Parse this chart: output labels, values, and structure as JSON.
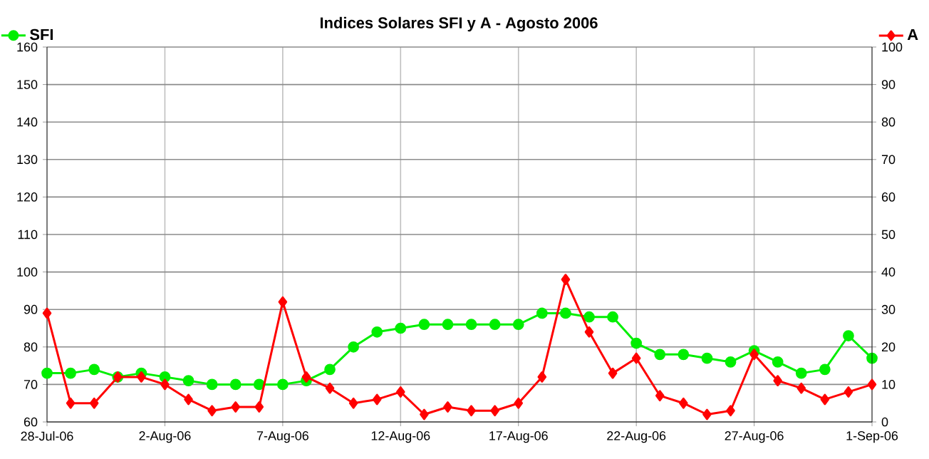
{
  "chart_data": {
    "type": "line",
    "title": "Indices Solares SFI y A - Agosto 2006",
    "x": [
      "2006-07-28",
      "2006-07-29",
      "2006-07-30",
      "2006-07-31",
      "2006-08-01",
      "2006-08-02",
      "2006-08-03",
      "2006-08-04",
      "2006-08-05",
      "2006-08-06",
      "2006-08-07",
      "2006-08-08",
      "2006-08-09",
      "2006-08-10",
      "2006-08-11",
      "2006-08-12",
      "2006-08-13",
      "2006-08-14",
      "2006-08-15",
      "2006-08-16",
      "2006-08-17",
      "2006-08-18",
      "2006-08-19",
      "2006-08-20",
      "2006-08-21",
      "2006-08-22",
      "2006-08-23",
      "2006-08-24",
      "2006-08-25",
      "2006-08-26",
      "2006-08-27",
      "2006-08-28",
      "2006-08-29",
      "2006-08-30",
      "2006-08-31",
      "2006-09-01"
    ],
    "series": [
      {
        "name": "SFI",
        "color": "#00ee00",
        "marker": "circle",
        "values": [
          73,
          73,
          74,
          72,
          73,
          72,
          71,
          70,
          70,
          70,
          70,
          71,
          74,
          80,
          84,
          85,
          86,
          86,
          86,
          86,
          86,
          89,
          89,
          88,
          88,
          81,
          78,
          78,
          77,
          76,
          79,
          76,
          73,
          74,
          83,
          77
        ]
      },
      {
        "name": "A",
        "color": "#ff0000",
        "marker": "diamond",
        "axis": "y2",
        "values": [
          29,
          5,
          5,
          12,
          12,
          10,
          6,
          3,
          4,
          4,
          32,
          12,
          9,
          5,
          6,
          8,
          2,
          4,
          3,
          3,
          5,
          12,
          38,
          24,
          13,
          17,
          7,
          5,
          2,
          3,
          18,
          11,
          9,
          6,
          8,
          10
        ]
      }
    ],
    "xlim": [
      "2006-07-28",
      "2006-09-01"
    ],
    "xticks": [
      {
        "value": "2006-07-28",
        "label": "28-Jul-06"
      },
      {
        "value": "2006-08-02",
        "label": "2-Aug-06"
      },
      {
        "value": "2006-08-07",
        "label": "7-Aug-06"
      },
      {
        "value": "2006-08-12",
        "label": "12-Aug-06"
      },
      {
        "value": "2006-08-17",
        "label": "17-Aug-06"
      },
      {
        "value": "2006-08-22",
        "label": "22-Aug-06"
      },
      {
        "value": "2006-08-27",
        "label": "27-Aug-06"
      },
      {
        "value": "2006-09-01",
        "label": "1-Sep-06"
      }
    ],
    "ylim": [
      60,
      160
    ],
    "yticks": [
      60,
      70,
      80,
      90,
      100,
      110,
      120,
      130,
      140,
      150,
      160
    ],
    "y2lim": [
      0,
      100
    ],
    "y2ticks": [
      0,
      10,
      20,
      30,
      40,
      50,
      60,
      70,
      80,
      90,
      100
    ],
    "grid": true,
    "legend": "top"
  }
}
